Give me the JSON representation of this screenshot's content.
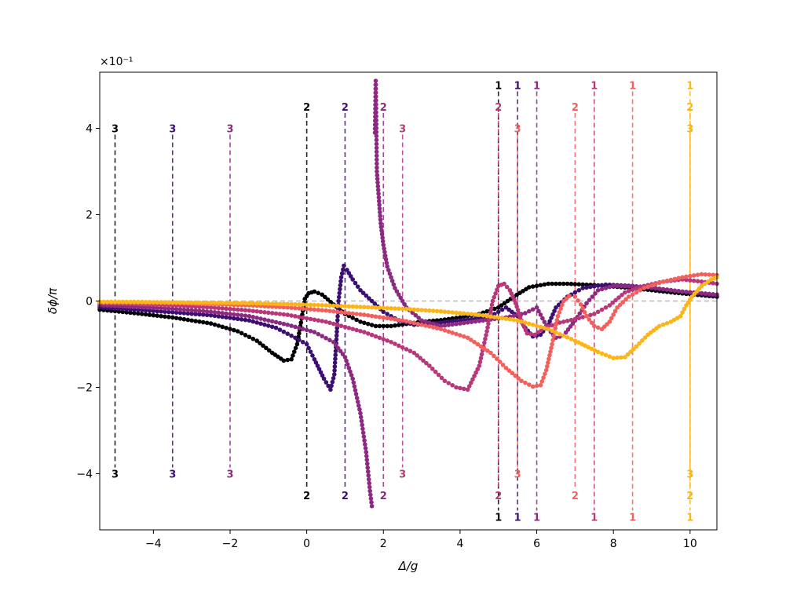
{
  "chart_data": {
    "type": "scatter",
    "title": "",
    "xlabel": "Δ/g",
    "ylabel": "δϕ/π",
    "offset_text": "×10⁻¹",
    "xlim": [
      -5.4,
      10.7
    ],
    "ylim": [
      -5.3,
      5.3
    ],
    "xticks": [
      -4,
      -2,
      0,
      2,
      4,
      6,
      8,
      10
    ],
    "yticks": [
      -4,
      -2,
      0,
      2,
      4
    ],
    "grid": false,
    "reference_line": {
      "y": 0,
      "style": "dashed",
      "color": "#bbbbbb"
    },
    "series": [
      {
        "color": "#000004",
        "points": [
          [
            -5.4,
            -0.2
          ],
          [
            -4.5,
            -0.28
          ],
          [
            -3.5,
            -0.38
          ],
          [
            -2.5,
            -0.52
          ],
          [
            -1.8,
            -0.7
          ],
          [
            -1.3,
            -0.92
          ],
          [
            -0.9,
            -1.2
          ],
          [
            -0.6,
            -1.38
          ],
          [
            -0.4,
            -1.35
          ],
          [
            -0.25,
            -1.0
          ],
          [
            -0.15,
            -0.5
          ],
          [
            -0.05,
            0.05
          ],
          [
            0.05,
            0.18
          ],
          [
            0.2,
            0.22
          ],
          [
            0.4,
            0.15
          ],
          [
            0.7,
            -0.08
          ],
          [
            1.0,
            -0.3
          ],
          [
            1.4,
            -0.48
          ],
          [
            1.8,
            -0.58
          ],
          [
            2.2,
            -0.58
          ],
          [
            2.6,
            -0.53
          ],
          [
            3.0,
            -0.48
          ],
          [
            3.5,
            -0.44
          ],
          [
            4.0,
            -0.38
          ],
          [
            4.5,
            -0.3
          ],
          [
            5.0,
            -0.15
          ],
          [
            5.4,
            0.1
          ],
          [
            5.8,
            0.32
          ],
          [
            6.3,
            0.4
          ],
          [
            6.8,
            0.4
          ],
          [
            7.5,
            0.37
          ],
          [
            8.5,
            0.3
          ],
          [
            9.5,
            0.2
          ],
          [
            10.7,
            0.1
          ]
        ]
      },
      {
        "color": "#3b0f70",
        "points": [
          [
            -5.4,
            -0.15
          ],
          [
            -4.5,
            -0.2
          ],
          [
            -3.5,
            -0.26
          ],
          [
            -2.5,
            -0.33
          ],
          [
            -1.5,
            -0.45
          ],
          [
            -0.8,
            -0.62
          ],
          [
            -0.3,
            -0.85
          ],
          [
            0.0,
            -1.0
          ],
          [
            0.2,
            -1.35
          ],
          [
            0.45,
            -1.8
          ],
          [
            0.62,
            -2.05
          ],
          [
            0.72,
            -1.7
          ],
          [
            0.78,
            -0.8
          ],
          [
            0.83,
            0.0
          ],
          [
            0.9,
            0.55
          ],
          [
            0.97,
            0.82
          ],
          [
            1.05,
            0.72
          ],
          [
            1.2,
            0.5
          ],
          [
            1.4,
            0.25
          ],
          [
            1.7,
            0.0
          ],
          [
            2.0,
            -0.25
          ],
          [
            2.4,
            -0.45
          ],
          [
            2.8,
            -0.55
          ],
          [
            3.3,
            -0.52
          ],
          [
            3.8,
            -0.47
          ],
          [
            4.3,
            -0.42
          ],
          [
            4.8,
            -0.35
          ],
          [
            5.2,
            -0.15
          ],
          [
            5.5,
            -0.35
          ],
          [
            5.7,
            -0.62
          ],
          [
            5.9,
            -0.82
          ],
          [
            6.1,
            -0.78
          ],
          [
            6.3,
            -0.55
          ],
          [
            6.5,
            -0.15
          ],
          [
            6.8,
            0.1
          ],
          [
            7.2,
            0.3
          ],
          [
            7.8,
            0.38
          ],
          [
            8.5,
            0.35
          ],
          [
            9.5,
            0.25
          ],
          [
            10.7,
            0.12
          ]
        ]
      },
      {
        "color": "#8c2981",
        "points": [
          [
            -5.4,
            -0.1
          ],
          [
            -4.5,
            -0.13
          ],
          [
            -3.5,
            -0.18
          ],
          [
            -2.5,
            -0.25
          ],
          [
            -1.5,
            -0.35
          ],
          [
            -0.5,
            -0.55
          ],
          [
            0.2,
            -0.72
          ],
          [
            0.7,
            -0.95
          ],
          [
            1.0,
            -1.3
          ],
          [
            1.2,
            -1.8
          ],
          [
            1.4,
            -2.6
          ],
          [
            1.55,
            -3.5
          ],
          [
            1.65,
            -4.4
          ],
          [
            1.7,
            -4.75
          ],
          [
            1.78,
            3.9
          ],
          [
            1.8,
            5.1
          ],
          [
            1.83,
            3.0
          ],
          [
            1.88,
            2.4
          ],
          [
            1.93,
            1.8
          ],
          [
            2.0,
            1.3
          ],
          [
            2.1,
            0.8
          ],
          [
            2.3,
            0.3
          ],
          [
            2.6,
            -0.15
          ],
          [
            3.0,
            -0.45
          ],
          [
            3.5,
            -0.58
          ],
          [
            4.0,
            -0.52
          ],
          [
            4.6,
            -0.45
          ],
          [
            5.2,
            -0.38
          ],
          [
            5.7,
            -0.28
          ],
          [
            6.0,
            -0.15
          ],
          [
            6.3,
            -0.65
          ],
          [
            6.5,
            -0.85
          ],
          [
            6.7,
            -0.8
          ],
          [
            7.0,
            -0.45
          ],
          [
            7.3,
            -0.05
          ],
          [
            7.6,
            0.25
          ],
          [
            8.0,
            0.35
          ],
          [
            8.8,
            0.33
          ],
          [
            9.8,
            0.22
          ],
          [
            10.7,
            0.15
          ]
        ]
      },
      {
        "color": "#b73779",
        "points": [
          [
            -5.4,
            -0.05
          ],
          [
            -4.5,
            -0.07
          ],
          [
            -3.5,
            -0.1
          ],
          [
            -2.5,
            -0.15
          ],
          [
            -1.5,
            -0.22
          ],
          [
            -0.5,
            -0.32
          ],
          [
            0.5,
            -0.48
          ],
          [
            1.5,
            -0.72
          ],
          [
            2.2,
            -0.95
          ],
          [
            2.8,
            -1.2
          ],
          [
            3.2,
            -1.5
          ],
          [
            3.6,
            -1.85
          ],
          [
            3.9,
            -2.0
          ],
          [
            4.2,
            -2.05
          ],
          [
            4.5,
            -1.5
          ],
          [
            4.7,
            -0.7
          ],
          [
            4.85,
            0.0
          ],
          [
            5.0,
            0.35
          ],
          [
            5.15,
            0.4
          ],
          [
            5.3,
            0.25
          ],
          [
            5.45,
            -0.05
          ],
          [
            5.6,
            -0.45
          ],
          [
            5.75,
            -0.75
          ],
          [
            5.95,
            -0.78
          ],
          [
            6.2,
            -0.62
          ],
          [
            6.6,
            -0.5
          ],
          [
            7.0,
            -0.42
          ],
          [
            7.5,
            -0.3
          ],
          [
            7.9,
            -0.1
          ],
          [
            8.3,
            0.2
          ],
          [
            8.8,
            0.35
          ],
          [
            9.3,
            0.45
          ],
          [
            9.8,
            0.5
          ],
          [
            10.3,
            0.45
          ],
          [
            10.7,
            0.4
          ]
        ]
      },
      {
        "color": "#f1605d",
        "points": [
          [
            -5.4,
            -0.03
          ],
          [
            -4.5,
            -0.04
          ],
          [
            -3.5,
            -0.05
          ],
          [
            -2.5,
            -0.07
          ],
          [
            -1.5,
            -0.1
          ],
          [
            -0.5,
            -0.15
          ],
          [
            0.5,
            -0.22
          ],
          [
            1.5,
            -0.32
          ],
          [
            2.5,
            -0.45
          ],
          [
            3.5,
            -0.65
          ],
          [
            4.2,
            -0.85
          ],
          [
            4.8,
            -1.2
          ],
          [
            5.2,
            -1.55
          ],
          [
            5.6,
            -1.85
          ],
          [
            5.9,
            -1.98
          ],
          [
            6.1,
            -1.95
          ],
          [
            6.25,
            -1.6
          ],
          [
            6.4,
            -1.0
          ],
          [
            6.55,
            -0.35
          ],
          [
            6.7,
            0.0
          ],
          [
            6.85,
            0.12
          ],
          [
            7.0,
            0.1
          ],
          [
            7.15,
            -0.08
          ],
          [
            7.3,
            -0.35
          ],
          [
            7.5,
            -0.58
          ],
          [
            7.7,
            -0.65
          ],
          [
            7.9,
            -0.48
          ],
          [
            8.1,
            -0.15
          ],
          [
            8.4,
            0.1
          ],
          [
            8.8,
            0.3
          ],
          [
            9.3,
            0.45
          ],
          [
            9.8,
            0.55
          ],
          [
            10.3,
            0.62
          ],
          [
            10.7,
            0.6
          ]
        ]
      },
      {
        "color": "#fcb519",
        "points": [
          [
            -5.4,
            -0.02
          ],
          [
            -4.5,
            -0.02
          ],
          [
            -3.5,
            -0.03
          ],
          [
            -2.5,
            -0.04
          ],
          [
            -1.5,
            -0.05
          ],
          [
            -0.5,
            -0.07
          ],
          [
            0.5,
            -0.1
          ],
          [
            1.5,
            -0.14
          ],
          [
            2.5,
            -0.18
          ],
          [
            3.5,
            -0.24
          ],
          [
            4.5,
            -0.32
          ],
          [
            5.5,
            -0.45
          ],
          [
            6.3,
            -0.65
          ],
          [
            7.0,
            -0.92
          ],
          [
            7.6,
            -1.18
          ],
          [
            8.0,
            -1.32
          ],
          [
            8.3,
            -1.3
          ],
          [
            8.6,
            -1.05
          ],
          [
            8.9,
            -0.78
          ],
          [
            9.2,
            -0.58
          ],
          [
            9.5,
            -0.48
          ],
          [
            9.75,
            -0.35
          ],
          [
            9.9,
            -0.1
          ],
          [
            10.05,
            0.1
          ],
          [
            10.3,
            0.35
          ],
          [
            10.55,
            0.5
          ],
          [
            10.7,
            0.55
          ]
        ]
      }
    ],
    "markers": [
      {
        "x": -5,
        "label": "3",
        "color": "#000004",
        "top": 4.0,
        "bottom": -4.0
      },
      {
        "x": -3.5,
        "label": "3",
        "color": "#3b0f70",
        "top": 4.0,
        "bottom": -4.0
      },
      {
        "x": -2,
        "label": "3",
        "color": "#8c2981",
        "top": 4.0,
        "bottom": -4.0
      },
      {
        "x": 0,
        "label": "2",
        "color": "#000004",
        "top": 4.5,
        "bottom": -4.5
      },
      {
        "x": 1,
        "label": "2",
        "color": "#3b0f70",
        "top": 4.5,
        "bottom": -4.5
      },
      {
        "x": 2,
        "label": "2",
        "color": "#8c2981",
        "top": 4.5,
        "bottom": -4.5
      },
      {
        "x": 2.5,
        "label": "3",
        "color": "#b73779",
        "top": 4.0,
        "bottom": -4.0
      },
      {
        "x": 5,
        "label": "1",
        "color": "#000004",
        "top": 5.0,
        "bottom": -5.0
      },
      {
        "x": 5,
        "label": "2",
        "color": "#b73779",
        "top": 4.5,
        "bottom": -4.5
      },
      {
        "x": 5.5,
        "label": "1",
        "color": "#3b0f70",
        "top": 5.0,
        "bottom": -5.0
      },
      {
        "x": 5.5,
        "label": "3",
        "color": "#f1605d",
        "top": 4.0,
        "bottom": -4.0
      },
      {
        "x": 6,
        "label": "1",
        "color": "#8c2981",
        "top": 5.0,
        "bottom": -5.0
      },
      {
        "x": 7,
        "label": "2",
        "color": "#f1605d",
        "top": 4.5,
        "bottom": -4.5
      },
      {
        "x": 7.5,
        "label": "1",
        "color": "#b73779",
        "top": 5.0,
        "bottom": -5.0
      },
      {
        "x": 8.5,
        "label": "1",
        "color": "#f1605d",
        "top": 5.0,
        "bottom": -5.0
      },
      {
        "x": 10,
        "label": "1",
        "color": "#fcb519",
        "top": 5.0,
        "bottom": -5.0
      },
      {
        "x": 10,
        "label": "2",
        "color": "#fcb519",
        "top": 4.5,
        "bottom": -4.5
      },
      {
        "x": 10,
        "label": "3",
        "color": "#fcb519",
        "top": 4.0,
        "bottom": -4.0
      }
    ]
  }
}
